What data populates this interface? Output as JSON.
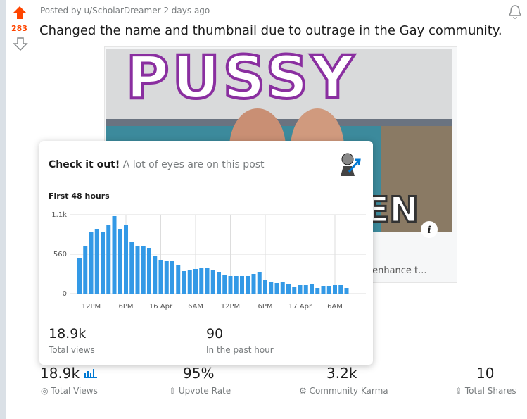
{
  "post": {
    "score": "283",
    "meta": "Posted by u/ScholarDreamer 2 days ago",
    "title": "Changed the name and thumbnail due to outrage in the Gay community.",
    "image_text": "PUSSY",
    "image_text_partial": "EN",
    "link_caption": "o enhance t..."
  },
  "card": {
    "heading": "Check it out!",
    "subheading": "A lot of eyes are on this post",
    "chart_title": "First 48 hours",
    "chart_data": {
      "type": "bar",
      "color": "#3399e6",
      "grid": true,
      "categories": [
        null,
        null,
        "12PM",
        null,
        null,
        null,
        null,
        null,
        "6PM",
        null,
        null,
        null,
        null,
        null,
        "16 Apr",
        null,
        null,
        null,
        null,
        null,
        "6AM",
        null,
        null,
        null,
        null,
        null,
        "12PM",
        null,
        null,
        null,
        null,
        null,
        "6PM",
        null,
        null,
        null,
        null,
        null,
        "17 Apr",
        null,
        null,
        null,
        null,
        null,
        "6AM",
        null,
        null
      ],
      "values": [
        510,
        670,
        870,
        920,
        870,
        970,
        1100,
        920,
        980,
        740,
        670,
        680,
        650,
        540,
        480,
        470,
        460,
        400,
        320,
        330,
        350,
        370,
        370,
        330,
        310,
        260,
        250,
        250,
        250,
        250,
        280,
        310,
        190,
        160,
        150,
        160,
        140,
        100,
        120,
        120,
        130,
        80,
        110,
        110,
        120,
        120,
        80
      ],
      "ylim": [
        0,
        1120
      ],
      "yticks": [
        0,
        560,
        {
          "value": 1120,
          "label": "1.1k"
        }
      ]
    },
    "stats": [
      {
        "value": "18.9k",
        "label": "Total views"
      },
      {
        "value": "90",
        "label": "In the past hour"
      }
    ]
  },
  "footer": [
    {
      "value": "18.9k",
      "label": "Total Views"
    },
    {
      "value": "95%",
      "label": "Upvote Rate"
    },
    {
      "value": "3.2k",
      "label": "Community Karma"
    },
    {
      "value": "10",
      "label": "Total Shares"
    }
  ]
}
